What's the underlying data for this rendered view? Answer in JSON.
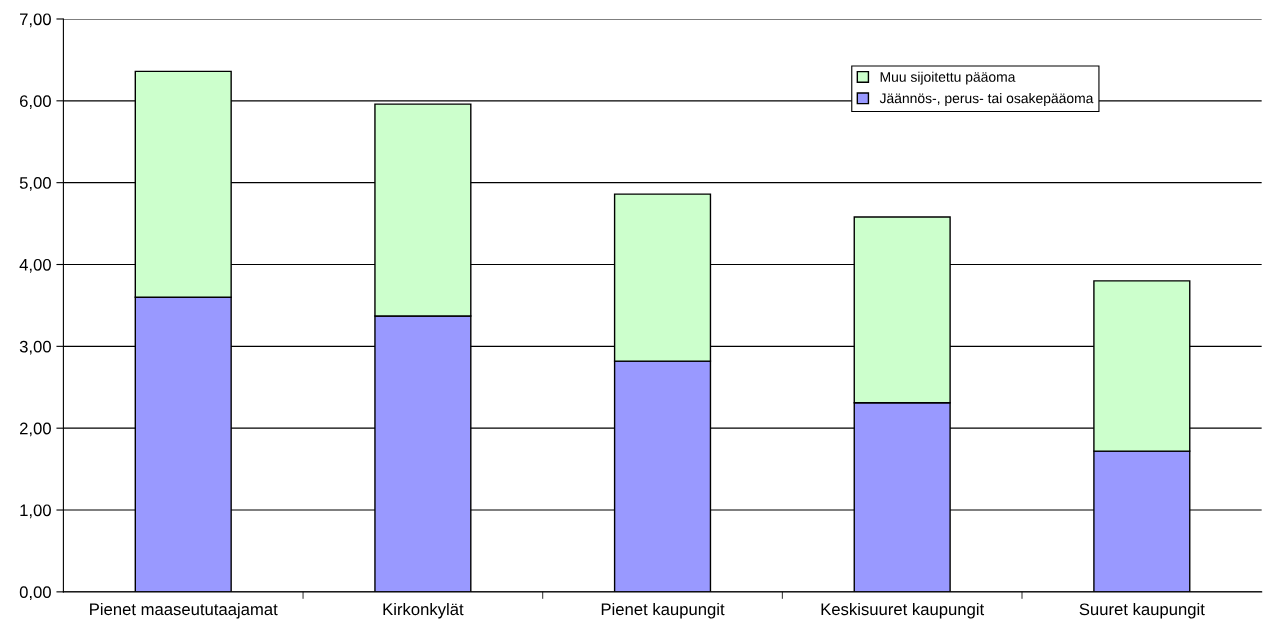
{
  "chart_data": {
    "type": "bar",
    "stacked": true,
    "categories": [
      "Pienet maaseututaajamat",
      "Kirkonkylät",
      "Pienet kaupungit",
      "Keskisuuret kaupungit",
      "Suuret kaupungit"
    ],
    "series": [
      {
        "name": "Jäännös-, perus- tai osakepääoma",
        "color": "#9999ff",
        "values": [
          3.6,
          3.37,
          2.82,
          2.31,
          1.72
        ]
      },
      {
        "name": "Muu sijoitettu pääoma",
        "color": "#ccffcc",
        "values": [
          2.76,
          2.59,
          2.04,
          2.27,
          2.08
        ]
      }
    ],
    "ylim": [
      0,
      7
    ],
    "yticks": [
      {
        "value": 0,
        "label": "0,00"
      },
      {
        "value": 1,
        "label": "1,00"
      },
      {
        "value": 2,
        "label": "2,00"
      },
      {
        "value": 3,
        "label": "3,00"
      },
      {
        "value": 4,
        "label": "4,00"
      },
      {
        "value": 5,
        "label": "5,00"
      },
      {
        "value": 6,
        "label": "6,00"
      },
      {
        "value": 7,
        "label": "7,00"
      }
    ],
    "grid": "y",
    "legend": "top right"
  }
}
